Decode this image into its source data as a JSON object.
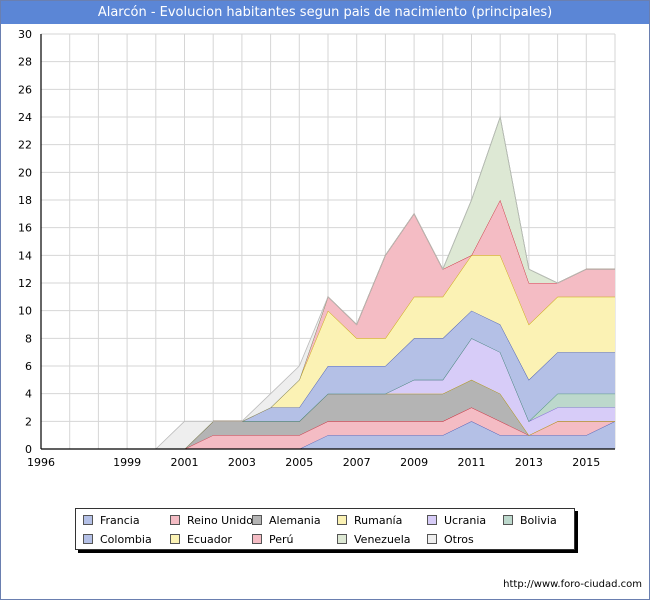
{
  "title": "Alarcón - Evolucion habitantes segun pais de nacimiento (principales)",
  "source": "http://www.foro-ciudad.com",
  "chart_data": {
    "type": "area",
    "stacked": true,
    "x": [
      1996,
      1997,
      1998,
      1999,
      2000,
      2001,
      2002,
      2003,
      2004,
      2005,
      2006,
      2007,
      2008,
      2009,
      2010,
      2011,
      2012,
      2013,
      2014,
      2015,
      2016
    ],
    "x_ticks": [
      1996,
      1999,
      2001,
      2003,
      2005,
      2007,
      2009,
      2011,
      2013,
      2015
    ],
    "x_tick_labels": [
      "1996",
      "1999",
      "2001",
      "2003",
      "2005",
      "2007",
      "2009",
      "2011",
      "2013",
      "2015"
    ],
    "y_ticks": [
      0,
      2,
      4,
      6,
      8,
      10,
      12,
      14,
      16,
      18,
      20,
      22,
      24,
      26,
      28,
      30
    ],
    "y_tick_labels": [
      "0",
      "2",
      "4",
      "6",
      "8",
      "10",
      "12",
      "14",
      "16",
      "18",
      "20",
      "22",
      "24",
      "26",
      "28",
      "30"
    ],
    "xlim": [
      1996,
      2016
    ],
    "ylim": [
      0,
      30
    ],
    "grid": true,
    "legend_position": "bottom",
    "series": [
      {
        "name": "Francia",
        "color": "#b4c0e6",
        "line": "#3a4fb0",
        "values": [
          0,
          0,
          0,
          0,
          0,
          0,
          0,
          0,
          0,
          0,
          1,
          1,
          1,
          1,
          1,
          2,
          1,
          1,
          1,
          1,
          2
        ]
      },
      {
        "name": "Reino Unido",
        "color": "#f4bcc4",
        "line": "#c81e2e",
        "values": [
          0,
          0,
          0,
          0,
          0,
          0,
          1,
          1,
          1,
          1,
          1,
          1,
          1,
          1,
          1,
          1,
          1,
          0,
          1,
          1,
          0
        ]
      },
      {
        "name": "Alemania",
        "color": "#b4b4b4",
        "line": "#444444",
        "values": [
          0,
          0,
          0,
          0,
          0,
          0,
          1,
          1,
          1,
          1,
          2,
          2,
          2,
          2,
          2,
          2,
          2,
          0,
          0,
          0,
          0
        ]
      },
      {
        "name": "Rumanía",
        "color": "#fbf2b4",
        "line": "#c8a800",
        "values": [
          0,
          0,
          0,
          0,
          0,
          0,
          0,
          0,
          0,
          0,
          0,
          0,
          0,
          0,
          0,
          0,
          0,
          0,
          0,
          0,
          0
        ]
      },
      {
        "name": "Ucrania",
        "color": "#d7ccf8",
        "line": "#7a5cd8",
        "values": [
          0,
          0,
          0,
          0,
          0,
          0,
          0,
          0,
          0,
          0,
          0,
          0,
          0,
          1,
          1,
          3,
          3,
          1,
          1,
          1,
          1
        ]
      },
      {
        "name": "Bolivia",
        "color": "#bcd8cc",
        "line": "#3e8c6a",
        "values": [
          0,
          0,
          0,
          0,
          0,
          0,
          0,
          0,
          0,
          0,
          0,
          0,
          0,
          0,
          0,
          0,
          0,
          0,
          1,
          1,
          1
        ]
      },
      {
        "name": "Colombia",
        "color": "#b4c0e6",
        "line": "#3a4fb0",
        "values": [
          0,
          0,
          0,
          0,
          0,
          0,
          0,
          0,
          1,
          1,
          2,
          2,
          2,
          3,
          3,
          2,
          2,
          3,
          3,
          3,
          3
        ]
      },
      {
        "name": "Ecuador",
        "color": "#fbf2b4",
        "line": "#c8a800",
        "values": [
          0,
          0,
          0,
          0,
          0,
          0,
          0,
          0,
          0,
          2,
          4,
          2,
          2,
          3,
          3,
          4,
          5,
          4,
          4,
          4,
          4
        ]
      },
      {
        "name": "Perú",
        "color": "#f4bcc4",
        "line": "#c81e2e",
        "values": [
          0,
          0,
          0,
          0,
          0,
          0,
          0,
          0,
          0,
          0,
          1,
          1,
          6,
          6,
          2,
          0,
          4,
          3,
          1,
          2,
          2
        ]
      },
      {
        "name": "Venezuela",
        "color": "#dde8d4",
        "line": "#7a9a6a",
        "values": [
          0,
          0,
          0,
          0,
          0,
          0,
          0,
          0,
          0,
          0,
          0,
          0,
          0,
          0,
          0,
          4,
          6,
          1,
          0,
          0,
          0
        ]
      },
      {
        "name": "Otros",
        "color": "#eeeeee",
        "line": "#bbbbbb",
        "values": [
          0,
          0,
          0,
          0,
          0,
          2,
          0,
          0,
          1,
          1,
          0,
          0,
          0,
          0,
          0,
          0,
          0,
          0,
          0,
          0,
          0
        ]
      }
    ]
  }
}
